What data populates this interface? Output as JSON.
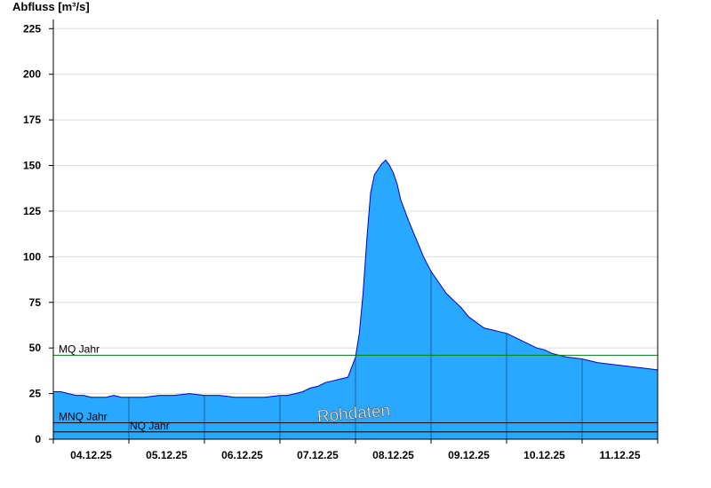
{
  "chart_data": {
    "type": "area",
    "ylabel": "Abfluss [m³/s]",
    "xlabel": "",
    "title": "",
    "ylim": [
      0,
      230
    ],
    "yticks": [
      0,
      25,
      50,
      75,
      100,
      125,
      150,
      175,
      200,
      225
    ],
    "x_tick_labels": [
      "04.12.25",
      "05.12.25",
      "06.12.25",
      "07.12.25",
      "08.12.25",
      "09.12.25",
      "10.12.25",
      "11.12.25"
    ],
    "x_range_days": [
      0,
      8
    ],
    "grid": true,
    "colors": {
      "area": "#29a8ff",
      "line": "#0000cc",
      "mq_line": "#008000",
      "ref_line": "#000000",
      "grid": "#dddddd"
    },
    "series": [
      {
        "x": [
          0,
          0.1,
          0.2,
          0.3,
          0.4,
          0.5,
          0.6,
          0.7,
          0.8,
          0.9,
          1.0,
          1.2,
          1.4,
          1.5,
          1.6,
          1.8,
          2.0,
          2.2,
          2.4,
          2.6,
          2.8,
          3.0,
          3.1,
          3.2,
          3.3,
          3.4,
          3.5,
          3.6,
          3.7,
          3.8,
          3.9,
          4.0,
          4.05,
          4.1,
          4.15,
          4.2,
          4.25,
          4.3,
          4.35,
          4.4,
          4.45,
          4.5,
          4.55,
          4.6,
          4.7,
          4.8,
          4.9,
          5.0,
          5.1,
          5.2,
          5.3,
          5.4,
          5.5,
          5.6,
          5.7,
          5.8,
          5.9,
          6.0,
          6.1,
          6.2,
          6.3,
          6.4,
          6.5,
          6.6,
          6.8,
          7.0,
          7.2,
          7.4,
          7.6,
          7.8,
          8.0
        ],
        "values": [
          26,
          26,
          25,
          24,
          24,
          23,
          23,
          23,
          24,
          23,
          23,
          23,
          24,
          24,
          24,
          25,
          24,
          24,
          23,
          23,
          23,
          24,
          24,
          25,
          26,
          28,
          29,
          31,
          32,
          33,
          34,
          45,
          58,
          80,
          110,
          135,
          145,
          148,
          151,
          153,
          150,
          146,
          140,
          131,
          120,
          110,
          100,
          92,
          86,
          80,
          76,
          72,
          67,
          64,
          61,
          60,
          59,
          58,
          56,
          54,
          52,
          50,
          49,
          47,
          45,
          44,
          42,
          41,
          40,
          39,
          38
        ]
      }
    ],
    "reference_lines": [
      {
        "label": "MQ Jahr",
        "value": 46
      },
      {
        "label": "MNQ Jahr",
        "value": 9
      },
      {
        "label": "NQ Jahr",
        "value": 4
      }
    ],
    "watermark": "Rohdaten"
  }
}
